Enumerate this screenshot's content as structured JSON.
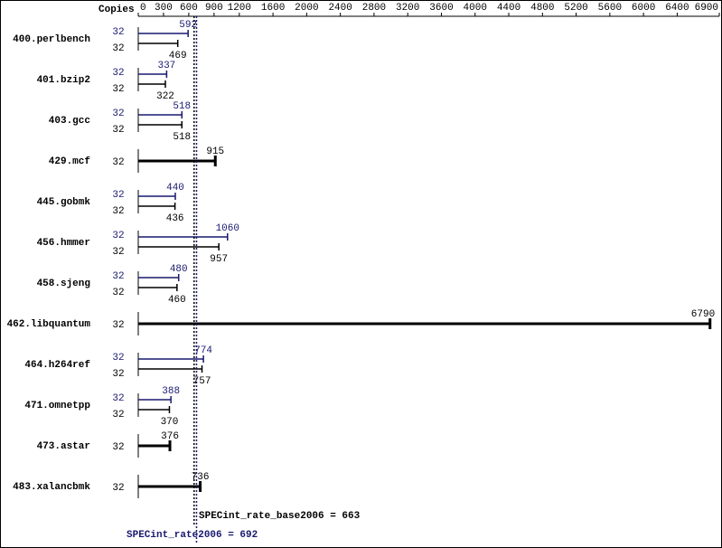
{
  "chart_data": {
    "type": "bar",
    "axis_title": "Copies",
    "categories": [
      "400.perlbench",
      "401.bzip2",
      "403.gcc",
      "429.mcf",
      "445.gobmk",
      "456.hmmer",
      "458.sjeng",
      "462.libquantum",
      "464.h264ref",
      "471.omnetpp",
      "473.astar",
      "483.xalancbmk"
    ],
    "series": [
      {
        "color": "#191970",
        "copies": [
          32,
          32,
          32,
          null,
          32,
          32,
          32,
          null,
          32,
          32,
          null,
          null
        ],
        "values": [
          592,
          337,
          518,
          null,
          440,
          1060,
          480,
          null,
          774,
          388,
          null,
          null
        ]
      },
      {
        "color": "#000000",
        "copies": [
          32,
          32,
          32,
          32,
          32,
          32,
          32,
          32,
          32,
          32,
          32,
          32
        ],
        "values": [
          469,
          322,
          518,
          915,
          436,
          957,
          460,
          6790,
          757,
          370,
          376,
          736
        ]
      }
    ],
    "xlim": [
      0,
      6900
    ],
    "xticks": [
      0,
      300,
      600,
      900,
      1200,
      1600,
      2000,
      2400,
      2800,
      3200,
      3600,
      4000,
      4400,
      4800,
      5200,
      5600,
      6000,
      6400,
      6900
    ],
    "reference_lines": [
      {
        "text": "SPECint_rate_base2006 = 663",
        "value": 663,
        "color": "#000000"
      },
      {
        "text": "SPECint_rate2006 = 692",
        "value": 692,
        "color": "#191970"
      }
    ]
  }
}
